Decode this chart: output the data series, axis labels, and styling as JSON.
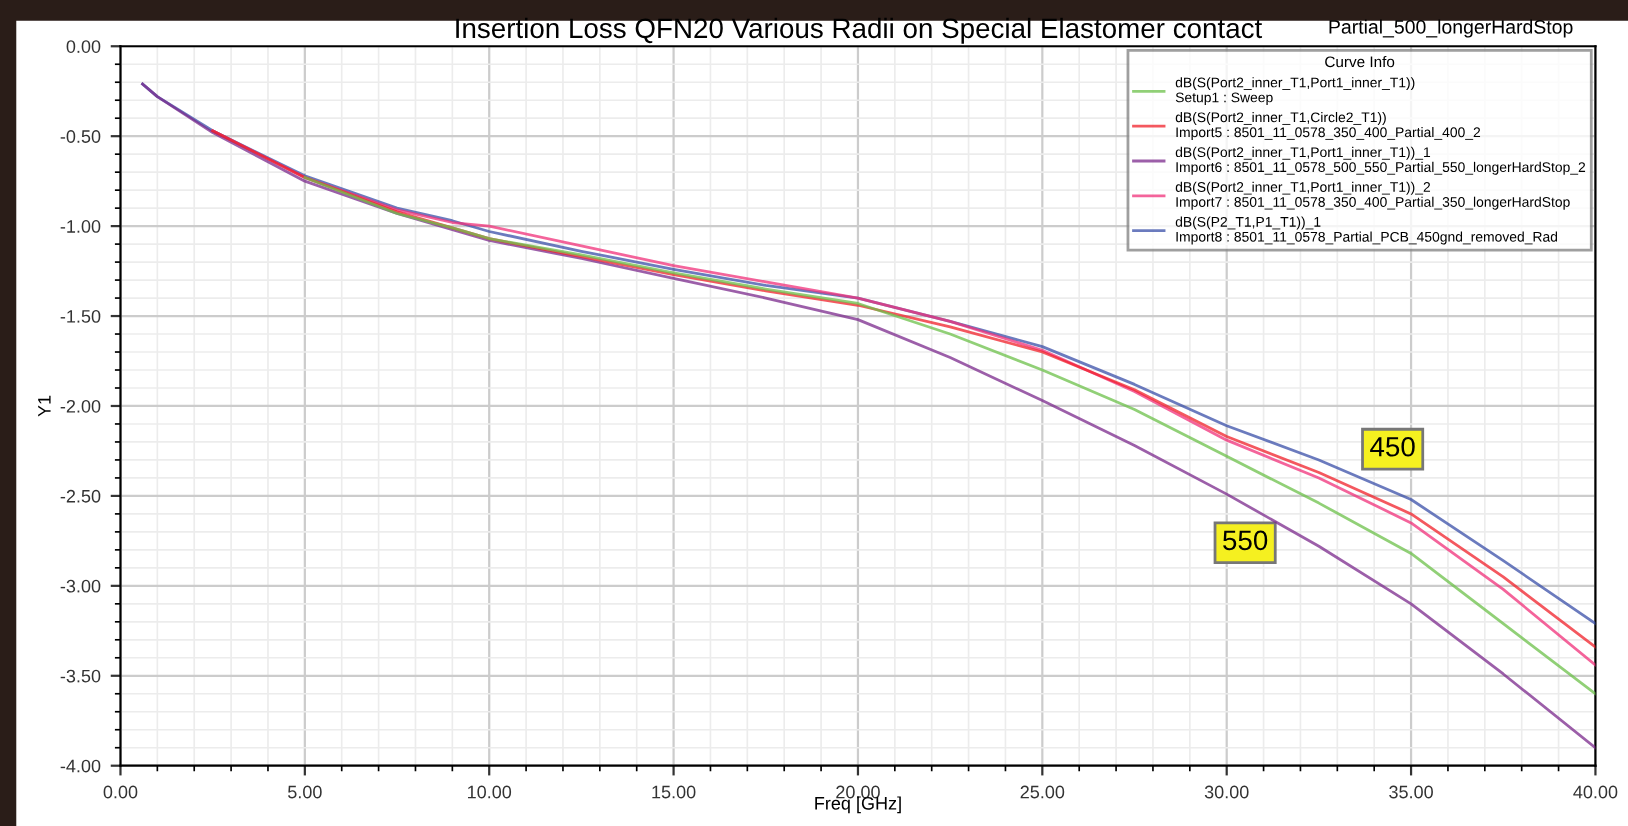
{
  "chart_data": {
    "type": "line",
    "title": "Insertion Loss QFN20 Various Radii on Special Elastomer contact",
    "subtitle": "Partial_500_longerHardStop",
    "xlabel": "Freq [GHz]",
    "ylabel": "Y1",
    "legend_title": "Curve Info",
    "x": [
      0.6,
      1,
      2.5,
      5,
      7.5,
      9,
      10,
      12.5,
      15,
      17.5,
      20,
      22.5,
      25,
      27.5,
      30,
      32.5,
      35,
      37.5,
      40
    ],
    "series": [
      {
        "name": "dB(S(Port2_inner_T1,Port1_inner_T1))\nSetup1 : Sweep",
        "color": "#6cc04a",
        "values": [
          null,
          null,
          null,
          -0.73,
          -0.93,
          -1.01,
          -1.07,
          -1.16,
          -1.26,
          -1.35,
          -1.43,
          -1.6,
          -1.8,
          -2.02,
          -2.28,
          -2.54,
          -2.82,
          -3.21,
          -3.6
        ]
      },
      {
        "name": "dB(S(Port2_inner_T1,Circle2_T1))\nImport5 : 8501_11_0578_350_400_Partial_400_2",
        "color": "#f0202a",
        "values": [
          null,
          null,
          -0.47,
          -0.73,
          -0.92,
          -1.01,
          -1.07,
          -1.17,
          -1.27,
          -1.36,
          -1.44,
          -1.56,
          -1.7,
          -1.91,
          -2.17,
          -2.37,
          -2.6,
          -2.95,
          -3.34
        ]
      },
      {
        "name": "dB(S(Port2_inner_T1,Port1_inner_T1))_1\nImport6 : 8501_11_0578_500_550_Partial_550_longerHardStop_2",
        "color": "#7b2a8c",
        "values": [
          -0.21,
          -0.28,
          -0.48,
          -0.75,
          -0.93,
          -1.02,
          -1.08,
          -1.18,
          -1.29,
          -1.4,
          -1.52,
          -1.73,
          -1.97,
          -2.22,
          -2.49,
          -2.78,
          -3.1,
          -3.49,
          -3.9
        ]
      },
      {
        "name": "dB(S(Port2_inner_T1,Port1_inner_T1))_2\nImport7 : 8501_11_0578_350_400_Partial_350_longerHardStop",
        "color": "#f0307a",
        "values": [
          null,
          null,
          -0.47,
          -0.73,
          -0.91,
          -0.98,
          -1.0,
          -1.11,
          -1.22,
          -1.31,
          -1.4,
          -1.53,
          -1.69,
          -1.92,
          -2.19,
          -2.4,
          -2.65,
          -3.02,
          -3.44
        ]
      },
      {
        "name": "dB(S(P2_T1,P1_T1))_1\nImport8 : 8501_11_0578_Partial_PCB_450gnd_removed_Rad",
        "color": "#3a4fa8",
        "values": [
          -0.21,
          -0.28,
          -0.47,
          -0.72,
          -0.9,
          -0.97,
          -1.03,
          -1.14,
          -1.24,
          -1.33,
          -1.4,
          -1.53,
          -1.67,
          -1.88,
          -2.11,
          -2.3,
          -2.52,
          -2.86,
          -3.21
        ]
      }
    ],
    "annotations": [
      {
        "text": "450",
        "x": 34.5,
        "y": -2.24
      },
      {
        "text": "550",
        "x": 30.5,
        "y": -2.76
      }
    ],
    "xlim": [
      0,
      40
    ],
    "ylim": [
      -4,
      0
    ],
    "xticks": [
      {
        "value": 0,
        "label": "0.00"
      },
      {
        "value": 5,
        "label": "5.00"
      },
      {
        "value": 10,
        "label": "10.00"
      },
      {
        "value": 15,
        "label": "15.00"
      },
      {
        "value": 20,
        "label": "20.00"
      },
      {
        "value": 25,
        "label": "25.00"
      },
      {
        "value": 30,
        "label": "30.00"
      },
      {
        "value": 35,
        "label": "35.00"
      },
      {
        "value": 40,
        "label": "40.00"
      }
    ],
    "yticks": [
      {
        "value": 0,
        "label": "0.00"
      },
      {
        "value": -0.5,
        "label": "-0.50"
      },
      {
        "value": -1,
        "label": "-1.00"
      },
      {
        "value": -1.5,
        "label": "-1.50"
      },
      {
        "value": -2,
        "label": "-2.00"
      },
      {
        "value": -2.5,
        "label": "-2.50"
      },
      {
        "value": -3,
        "label": "-3.00"
      },
      {
        "value": -3.5,
        "label": "-3.50"
      },
      {
        "value": -4,
        "label": "-4.00"
      }
    ],
    "grid": true,
    "legend": "top right",
    "marker": "none",
    "line_style": "solid"
  }
}
